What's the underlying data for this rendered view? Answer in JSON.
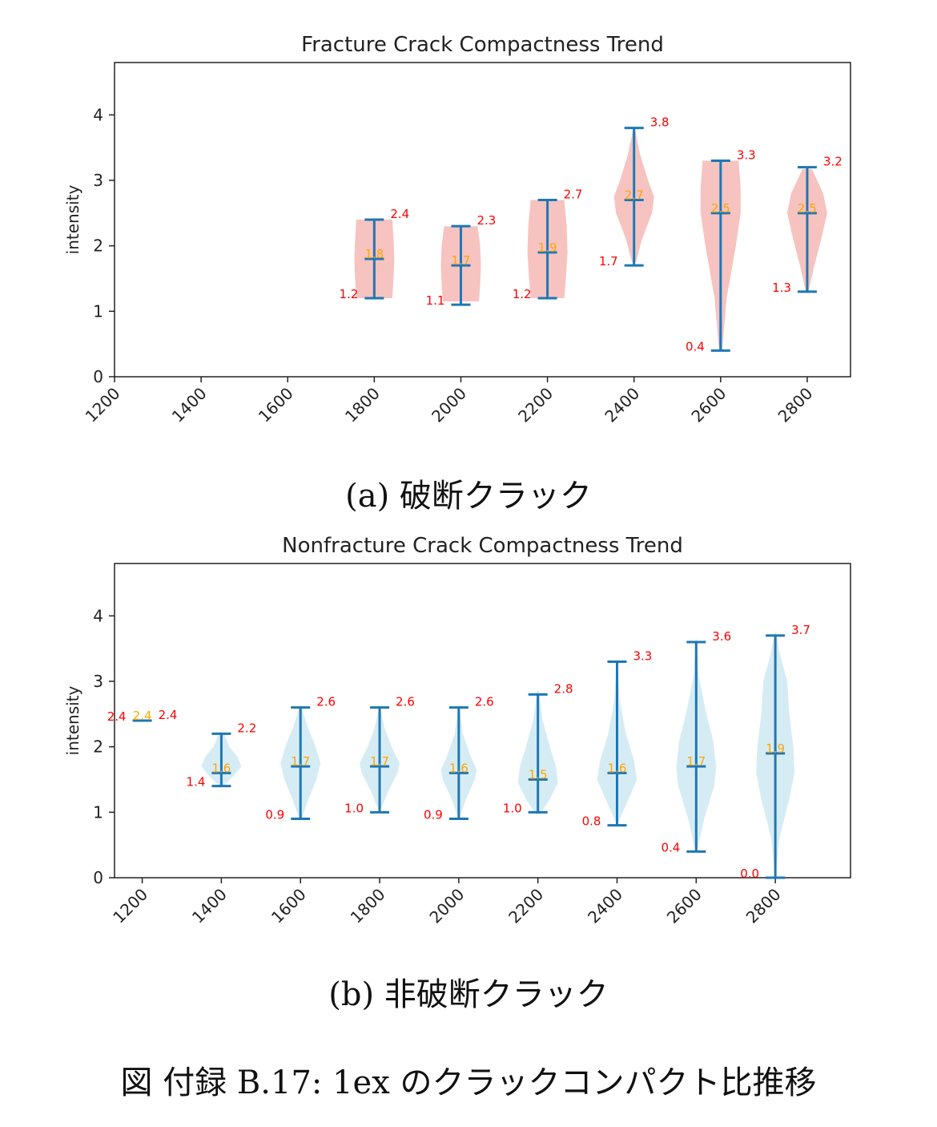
{
  "figure_caption": "図 付録 B.17: 1ex のクラックコンパクト比推移",
  "chart_data": [
    {
      "type": "violin",
      "title": "Fracture Crack Compactness Trend",
      "caption": "(a) 破断クラック",
      "ylabel": "intensity",
      "xlabel": "",
      "xlim": [
        1200,
        2900
      ],
      "ylim": [
        0,
        4.8
      ],
      "x_ticks": [
        1200,
        1400,
        1600,
        1800,
        2000,
        2200,
        2400,
        2600,
        2800
      ],
      "y_ticks": [
        0,
        1,
        2,
        3,
        4
      ],
      "fill_color": "#f4b9b5",
      "line_color": "#1f77b4",
      "min_label_color": "#ff0000",
      "mean_label_color": "#ffa500",
      "violins": [
        {
          "x": 1800,
          "min": 1.2,
          "max": 2.4,
          "mean": 1.8,
          "min_label": "1.2",
          "max_label": "2.4",
          "mean_label": "1.8",
          "shape": [
            [
              1.2,
              0.45
            ],
            [
              1.5,
              0.48
            ],
            [
              1.8,
              0.5
            ],
            [
              2.1,
              0.48
            ],
            [
              2.4,
              0.45
            ]
          ]
        },
        {
          "x": 2000,
          "min": 1.1,
          "max": 2.3,
          "mean": 1.7,
          "min_label": "1.1",
          "max_label": "2.3",
          "mean_label": "1.7",
          "shape": [
            [
              1.15,
              0.45
            ],
            [
              1.4,
              0.48
            ],
            [
              1.7,
              0.5
            ],
            [
              2.0,
              0.48
            ],
            [
              2.3,
              0.42
            ]
          ]
        },
        {
          "x": 2200,
          "min": 1.2,
          "max": 2.7,
          "mean": 1.9,
          "min_label": "1.2",
          "max_label": "2.7",
          "mean_label": "1.9",
          "shape": [
            [
              1.2,
              0.42
            ],
            [
              1.5,
              0.46
            ],
            [
              1.9,
              0.5
            ],
            [
              2.3,
              0.48
            ],
            [
              2.7,
              0.42
            ]
          ]
        },
        {
          "x": 2400,
          "min": 1.7,
          "max": 3.8,
          "mean": 2.7,
          "min_label": "1.7",
          "max_label": "3.8",
          "mean_label": "2.7",
          "shape": [
            [
              1.75,
              0.05
            ],
            [
              2.1,
              0.2
            ],
            [
              2.5,
              0.45
            ],
            [
              2.75,
              0.5
            ],
            [
              3.0,
              0.35
            ],
            [
              3.4,
              0.15
            ],
            [
              3.76,
              0.03
            ]
          ]
        },
        {
          "x": 2600,
          "min": 0.4,
          "max": 3.3,
          "mean": 2.5,
          "min_label": "0.4",
          "max_label": "3.3",
          "mean_label": "2.5",
          "shape": [
            [
              0.4,
              0.04
            ],
            [
              1.2,
              0.15
            ],
            [
              2.0,
              0.38
            ],
            [
              2.5,
              0.5
            ],
            [
              2.9,
              0.5
            ],
            [
              3.3,
              0.45
            ]
          ]
        },
        {
          "x": 2800,
          "min": 1.3,
          "max": 3.2,
          "mean": 2.5,
          "min_label": "1.3",
          "max_label": "3.2",
          "mean_label": "2.5",
          "shape": [
            [
              1.3,
              0.03
            ],
            [
              1.7,
              0.18
            ],
            [
              2.1,
              0.35
            ],
            [
              2.5,
              0.5
            ],
            [
              2.8,
              0.4
            ],
            [
              3.17,
              0.12
            ]
          ]
        }
      ]
    },
    {
      "type": "violin",
      "title": "Nonfracture Crack Compactness Trend",
      "caption": "(b) 非破断クラック",
      "ylabel": "intensity",
      "xlabel": "",
      "xlim": [
        1130,
        2990
      ],
      "ylim": [
        0,
        4.8
      ],
      "x_ticks": [
        1200,
        1400,
        1600,
        1800,
        2000,
        2200,
        2400,
        2600,
        2800
      ],
      "y_ticks": [
        0,
        1,
        2,
        3,
        4
      ],
      "fill_color": "#cfe9f2",
      "line_color": "#1f77b4",
      "min_label_color": "#ff0000",
      "mean_label_color": "#ffa500",
      "violins": [
        {
          "x": 1200,
          "min": 2.4,
          "max": 2.4,
          "mean": 2.4,
          "min_label": "2.4",
          "max_label": "2.4",
          "mean_label": "2.4",
          "shape": []
        },
        {
          "x": 1400,
          "min": 1.4,
          "max": 2.2,
          "mean": 1.6,
          "min_label": "1.4",
          "max_label": "2.2",
          "mean_label": "1.6",
          "shape": [
            [
              1.4,
              0.05
            ],
            [
              1.55,
              0.3
            ],
            [
              1.7,
              0.5
            ],
            [
              1.85,
              0.4
            ],
            [
              2.0,
              0.2
            ],
            [
              2.22,
              0.05
            ]
          ]
        },
        {
          "x": 1600,
          "min": 0.9,
          "max": 2.6,
          "mean": 1.7,
          "min_label": "0.9",
          "max_label": "2.6",
          "mean_label": "1.7",
          "shape": [
            [
              0.9,
              0.03
            ],
            [
              1.2,
              0.2
            ],
            [
              1.5,
              0.4
            ],
            [
              1.75,
              0.5
            ],
            [
              2.05,
              0.35
            ],
            [
              2.3,
              0.18
            ],
            [
              2.6,
              0.03
            ]
          ]
        },
        {
          "x": 1800,
          "min": 1.0,
          "max": 2.6,
          "mean": 1.7,
          "min_label": "1.0",
          "max_label": "2.6",
          "mean_label": "1.7",
          "shape": [
            [
              1.05,
              0.04
            ],
            [
              1.3,
              0.2
            ],
            [
              1.6,
              0.45
            ],
            [
              1.75,
              0.5
            ],
            [
              2.0,
              0.3
            ],
            [
              2.3,
              0.12
            ],
            [
              2.55,
              0.03
            ]
          ]
        },
        {
          "x": 2000,
          "min": 0.9,
          "max": 2.6,
          "mean": 1.6,
          "min_label": "0.9",
          "max_label": "2.6",
          "mean_label": "1.6",
          "shape": [
            [
              0.95,
              0.04
            ],
            [
              1.2,
              0.18
            ],
            [
              1.5,
              0.4
            ],
            [
              1.65,
              0.45
            ],
            [
              1.85,
              0.3
            ],
            [
              2.2,
              0.1
            ],
            [
              2.6,
              0.02
            ]
          ]
        },
        {
          "x": 2200,
          "min": 1.0,
          "max": 2.8,
          "mean": 1.5,
          "min_label": "1.0",
          "max_label": "2.8",
          "mean_label": "1.5",
          "shape": [
            [
              0.97,
              0.05
            ],
            [
              1.2,
              0.3
            ],
            [
              1.45,
              0.5
            ],
            [
              1.7,
              0.45
            ],
            [
              2.0,
              0.3
            ],
            [
              2.4,
              0.12
            ],
            [
              2.85,
              0.02
            ]
          ]
        },
        {
          "x": 2400,
          "min": 0.8,
          "max": 3.3,
          "mean": 1.6,
          "min_label": "0.8",
          "max_label": "3.3",
          "mean_label": "1.6",
          "shape": [
            [
              0.86,
              0.04
            ],
            [
              1.15,
              0.25
            ],
            [
              1.5,
              0.5
            ],
            [
              1.8,
              0.42
            ],
            [
              2.2,
              0.22
            ],
            [
              2.7,
              0.07
            ],
            [
              3.27,
              0.01
            ]
          ]
        },
        {
          "x": 2600,
          "min": 0.4,
          "max": 3.6,
          "mean": 1.7,
          "min_label": "0.4",
          "max_label": "3.6",
          "mean_label": "1.7",
          "shape": [
            [
              0.4,
              0.02
            ],
            [
              0.9,
              0.2
            ],
            [
              1.4,
              0.45
            ],
            [
              1.7,
              0.5
            ],
            [
              2.1,
              0.42
            ],
            [
              2.6,
              0.22
            ],
            [
              3.1,
              0.06
            ],
            [
              3.65,
              0.01
            ]
          ]
        },
        {
          "x": 2800,
          "min": 0.0,
          "max": 3.7,
          "mean": 1.9,
          "min_label": "0.0",
          "max_label": "3.7",
          "mean_label": "1.9",
          "shape": [
            [
              0.02,
              0.01
            ],
            [
              0.6,
              0.1
            ],
            [
              1.2,
              0.35
            ],
            [
              1.6,
              0.48
            ],
            [
              2.0,
              0.45
            ],
            [
              2.5,
              0.35
            ],
            [
              3.0,
              0.3
            ],
            [
              3.4,
              0.12
            ],
            [
              3.76,
              0.01
            ]
          ]
        }
      ]
    }
  ]
}
